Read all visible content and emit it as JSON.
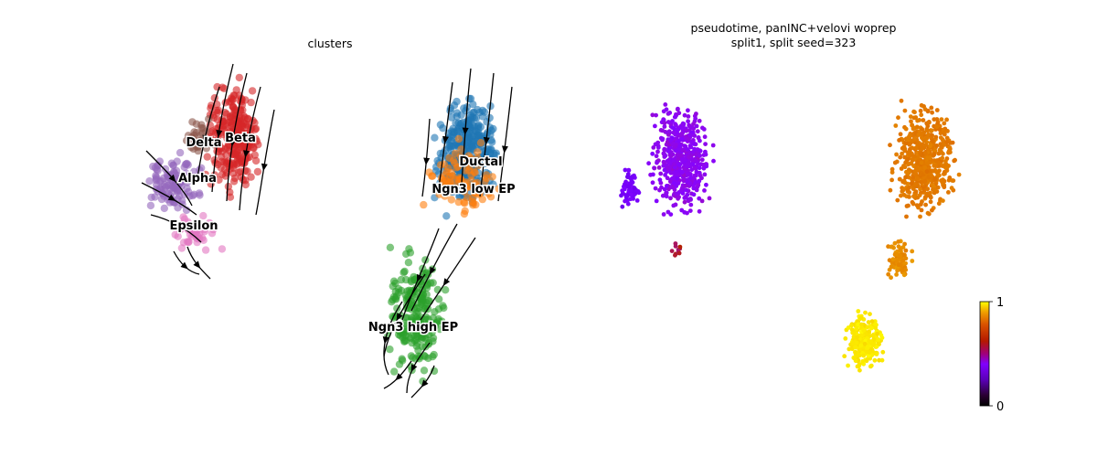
{
  "chart_data": [
    {
      "type": "scatter",
      "title": "clusters",
      "grid": false,
      "legend": "on data",
      "xlabel": "",
      "ylabel": "",
      "series": [
        {
          "name": "Beta",
          "color": "#d62728"
        },
        {
          "name": "Delta",
          "color": "#8c564b"
        },
        {
          "name": "Alpha",
          "color": "#9467bd"
        },
        {
          "name": "Epsilon",
          "color": "#e377c2"
        },
        {
          "name": "Ductal",
          "color": "#1f77b4"
        },
        {
          "name": "Ngn3 low EP",
          "color": "#ff7f0e"
        },
        {
          "name": "Ngn3 high EP",
          "color": "#2ca02c"
        }
      ],
      "labels": [
        "Beta",
        "Delta",
        "Alpha",
        "Epsilon",
        "Ductal",
        "Ngn3 low EP",
        "Ngn3 high EP"
      ],
      "overlay": "velocity streamlines with arrows"
    },
    {
      "type": "scatter",
      "title_lines": [
        "pseudotime, panINC+velovi woprep",
        "split1, split seed=323"
      ],
      "grid": false,
      "colorbar": {
        "min": 0,
        "max": 1,
        "ticks": [
          "0",
          "1"
        ],
        "colormap": "gnuplot"
      },
      "xlabel": "",
      "ylabel": ""
    }
  ]
}
